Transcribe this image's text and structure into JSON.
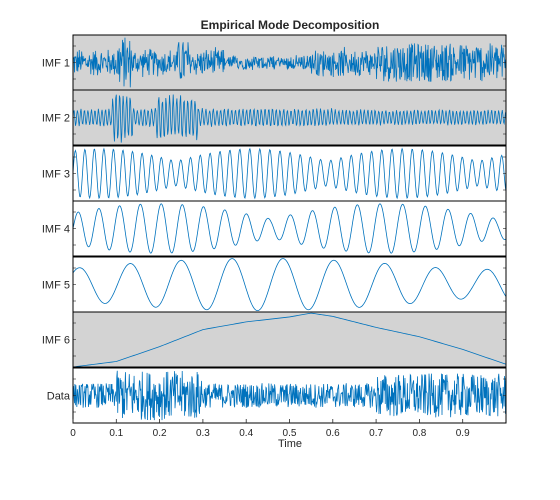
{
  "chart_data": {
    "type": "line",
    "title": "Empirical Mode Decomposition",
    "xlabel": "Time",
    "xlim": [
      0,
      1
    ],
    "x_ticks": [
      "0",
      "0.1",
      "0.2",
      "0.3",
      "0.4",
      "0.5",
      "0.6",
      "0.7",
      "0.8",
      "0.9"
    ],
    "x_tick_values": [
      0,
      0.1,
      0.2,
      0.3,
      0.4,
      0.5,
      0.6,
      0.7,
      0.8,
      0.9
    ],
    "line_color": "#0072BD",
    "panels": [
      {
        "name": "IMF 1",
        "shaded": true,
        "ylim": [
          -1,
          1
        ],
        "description": "high-frequency noise, bursts near 0.1-0.13 and 0.25, larger amplitude after 0.7"
      },
      {
        "name": "IMF 2",
        "shaded": true,
        "ylim": [
          -1,
          1
        ],
        "description": "medium-high frequency, large bursts near 0.1 and 0.22-0.28"
      },
      {
        "name": "IMF 3",
        "shaded": false,
        "ylim": [
          -1,
          1
        ],
        "description": "medium frequency oscillation, varying amplitude"
      },
      {
        "name": "IMF 4",
        "shaded": false,
        "ylim": [
          -1,
          1
        ],
        "description": "lower frequency oscillation, peak near 0.62"
      },
      {
        "name": "IMF 5",
        "shaded": false,
        "ylim": [
          -1,
          1
        ],
        "description": "low frequency oscillation, peak near 0.97"
      },
      {
        "name": "IMF 6",
        "shaded": true,
        "ylim": [
          0,
          1
        ],
        "description": "smooth trend rising to maximum near 0.55 then decaying",
        "trend": {
          "x": [
            0,
            0.1,
            0.2,
            0.3,
            0.4,
            0.5,
            0.55,
            0.6,
            0.7,
            0.8,
            0.9,
            1.0
          ],
          "y": [
            0.0,
            0.1,
            0.37,
            0.68,
            0.82,
            0.91,
            0.98,
            0.92,
            0.72,
            0.55,
            0.32,
            0.05
          ]
        }
      },
      {
        "name": "Data",
        "shaded": false,
        "ylim": [
          -1,
          1
        ],
        "description": "original signal, dense oscillation"
      }
    ]
  }
}
